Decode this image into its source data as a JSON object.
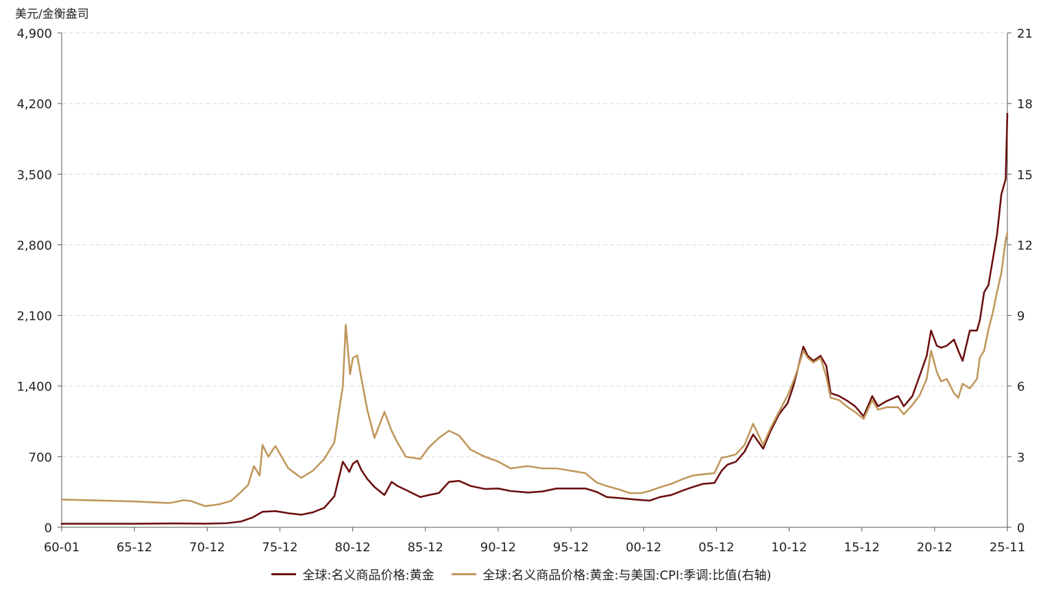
{
  "chart_data": {
    "type": "line",
    "left_unit": "美元/金衡盎司",
    "x_ticks": [
      "60-01",
      "65-12",
      "70-12",
      "75-12",
      "80-12",
      "85-12",
      "90-12",
      "95-12",
      "00-12",
      "05-12",
      "10-12",
      "15-12",
      "20-12",
      "25-11"
    ],
    "y_left": {
      "ticks": [
        "0",
        "700",
        "1,400",
        "2,100",
        "2,800",
        "3,500",
        "4,200",
        "4,900"
      ],
      "range": [
        0,
        4900
      ]
    },
    "y_right": {
      "ticks": [
        "0",
        "3",
        "6",
        "9",
        "12",
        "15",
        "18",
        "21"
      ],
      "range": [
        0,
        21
      ]
    },
    "grid": true,
    "legend_position": "bottom",
    "series": [
      {
        "name": "全球:名义商品价格:黄金",
        "axis": "left",
        "color": "#6b0f0f",
        "x": [
          1960.0,
          1965.0,
          1968.0,
          1970.0,
          1971.5,
          1972.5,
          1973.3,
          1974.0,
          1974.9,
          1975.8,
          1976.7,
          1977.5,
          1978.3,
          1979.0,
          1979.6,
          1980.05,
          1980.3,
          1980.6,
          1980.9,
          1981.3,
          1981.8,
          1982.5,
          1983.0,
          1983.4,
          1984.0,
          1985.0,
          1985.6,
          1986.3,
          1987.0,
          1987.7,
          1988.5,
          1989.5,
          1990.4,
          1991.3,
          1992.5,
          1993.5,
          1994.5,
          1995.5,
          1996.5,
          1997.3,
          1998.0,
          1998.9,
          1999.6,
          2000.4,
          2001.0,
          2001.7,
          2002.5,
          2003.3,
          2004.0,
          2004.7,
          2005.5,
          2006.0,
          2006.4,
          2007.0,
          2007.6,
          2008.2,
          2008.9,
          2009.4,
          2010.0,
          2010.6,
          2011.0,
          2011.3,
          2011.7,
          2012.0,
          2012.4,
          2012.9,
          2013.3,
          2013.6,
          2014.2,
          2014.8,
          2015.3,
          2015.9,
          2016.5,
          2016.9,
          2017.5,
          2018.3,
          2018.7,
          2019.3,
          2019.8,
          2020.3,
          2020.6,
          2021.0,
          2021.3,
          2021.7,
          2022.2,
          2022.5,
          2022.8,
          2023.3,
          2023.8,
          2024.0,
          2024.3,
          2024.6,
          2024.9,
          2025.2,
          2025.5,
          2025.8,
          2025.92
        ],
        "values": [
          35,
          35,
          39,
          36,
          41,
          58,
          97,
          154,
          161,
          140,
          125,
          148,
          193,
          306,
          650,
          550,
          630,
          660,
          565,
          480,
          400,
          320,
          450,
          410,
          370,
          300,
          320,
          340,
          450,
          460,
          410,
          380,
          385,
          360,
          345,
          355,
          385,
          385,
          385,
          350,
          300,
          290,
          280,
          270,
          265,
          300,
          320,
          365,
          400,
          430,
          440,
          560,
          620,
          650,
          750,
          920,
          780,
          950,
          1120,
          1230,
          1400,
          1560,
          1790,
          1700,
          1650,
          1700,
          1600,
          1330,
          1300,
          1250,
          1200,
          1100,
          1300,
          1200,
          1250,
          1300,
          1200,
          1300,
          1500,
          1700,
          1950,
          1800,
          1780,
          1800,
          1860,
          1750,
          1650,
          1950,
          1950,
          2050,
          2330,
          2400,
          2650,
          2900,
          3300,
          3450,
          4100
        ]
      },
      {
        "name": "全球:名义商品价格:黄金:与美国:CPI:季调:比值(右轴)",
        "axis": "right",
        "color": "#c0975c",
        "x": [
          1960.0,
          1965.0,
          1967.5,
          1968.5,
          1969.0,
          1970.0,
          1971.0,
          1971.8,
          1972.5,
          1973.0,
          1973.4,
          1973.8,
          1974.0,
          1974.4,
          1974.9,
          1975.8,
          1976.7,
          1977.5,
          1978.3,
          1979.0,
          1979.6,
          1979.8,
          1980.1,
          1980.3,
          1980.6,
          1980.9,
          1981.3,
          1981.8,
          1982.5,
          1983.0,
          1983.4,
          1984.0,
          1985.0,
          1985.6,
          1986.3,
          1987.0,
          1987.7,
          1988.5,
          1989.5,
          1990.4,
          1991.3,
          1992.5,
          1993.5,
          1994.5,
          1995.5,
          1996.5,
          1997.3,
          1998.0,
          1998.9,
          1999.6,
          2000.4,
          2001.0,
          2001.7,
          2002.5,
          2003.3,
          2004.0,
          2004.7,
          2005.5,
          2006.0,
          2006.4,
          2007.0,
          2007.6,
          2008.2,
          2008.9,
          2009.4,
          2010.0,
          2010.6,
          2011.0,
          2011.3,
          2011.7,
          2012.0,
          2012.4,
          2012.9,
          2013.3,
          2013.6,
          2014.2,
          2014.8,
          2015.3,
          2015.9,
          2016.5,
          2016.9,
          2017.5,
          2018.3,
          2018.7,
          2019.3,
          2019.8,
          2020.3,
          2020.6,
          2021.0,
          2021.3,
          2021.7,
          2022.2,
          2022.5,
          2022.8,
          2023.3,
          2023.8,
          2024.0,
          2024.3,
          2024.6,
          2024.9,
          2025.2,
          2025.5,
          2025.8,
          2025.92
        ],
        "values": [
          1.18,
          1.1,
          1.03,
          1.15,
          1.12,
          0.9,
          0.98,
          1.12,
          1.5,
          1.8,
          2.6,
          2.2,
          3.5,
          3.0,
          3.45,
          2.5,
          2.1,
          2.4,
          2.9,
          3.6,
          6.0,
          8.6,
          6.5,
          7.2,
          7.3,
          6.3,
          5.0,
          3.8,
          4.9,
          4.1,
          3.6,
          3.0,
          2.9,
          3.4,
          3.8,
          4.1,
          3.9,
          3.3,
          3.0,
          2.8,
          2.5,
          2.6,
          2.5,
          2.5,
          2.4,
          2.3,
          1.9,
          1.75,
          1.6,
          1.45,
          1.45,
          1.55,
          1.7,
          1.85,
          2.05,
          2.2,
          2.25,
          2.3,
          2.95,
          3.0,
          3.1,
          3.5,
          4.4,
          3.5,
          4.2,
          4.9,
          5.6,
          6.2,
          6.7,
          7.5,
          7.2,
          7.0,
          7.2,
          6.4,
          5.5,
          5.4,
          5.1,
          4.9,
          4.6,
          5.4,
          5.0,
          5.1,
          5.1,
          4.8,
          5.2,
          5.6,
          6.3,
          7.5,
          6.6,
          6.2,
          6.3,
          5.7,
          5.5,
          6.1,
          5.9,
          6.3,
          7.2,
          7.5,
          8.4,
          9.1,
          10.0,
          10.8,
          12.2,
          12.5
        ]
      }
    ]
  }
}
